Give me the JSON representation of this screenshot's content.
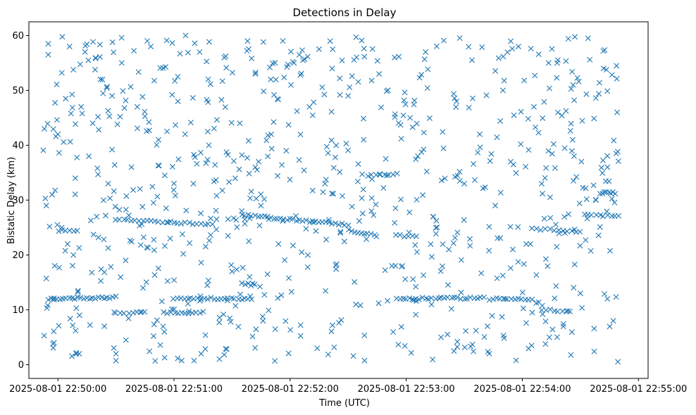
{
  "chart_data": {
    "type": "scatter",
    "title": "Detections in Delay",
    "xlabel": "Time (UTC)",
    "ylabel": "Bistatic Delay (km)",
    "x_type": "datetime",
    "xlim": [
      "2025-08-01 22:49:45",
      "2025-08-01 22:55:05"
    ],
    "ylim": [
      -2.5,
      62.5
    ],
    "xticks": [
      "2025-08-01 22:50:00",
      "2025-08-01 22:51:00",
      "2025-08-01 22:52:00",
      "2025-08-01 22:53:00",
      "2025-08-01 22:54:00",
      "2025-08-01 22:55:00"
    ],
    "yticks": [
      0,
      10,
      20,
      30,
      40,
      50,
      60
    ],
    "marker": "x",
    "color": "#1f77b4",
    "grid": false,
    "series": [
      {
        "points": [
          [
            "2025-08-01 22:49:53",
            43
          ],
          [
            "2025-08-01 22:49:54",
            29
          ],
          [
            "2025-08-01 22:49:55",
            58.5
          ],
          [
            "2025-08-01 22:49:55",
            56.5
          ],
          [
            "2025-08-01 22:49:57",
            31
          ],
          [
            "2025-08-01 22:49:58",
            4
          ],
          [
            "2025-08-01 22:50:00",
            42
          ],
          [
            "2025-08-01 22:50:02",
            25
          ],
          [
            "2025-08-01 22:50:04",
            48.5
          ],
          [
            "2025-08-01 22:50:05",
            22
          ],
          [
            "2025-08-01 22:50:06",
            58
          ],
          [
            "2025-08-01 22:50:08",
            20
          ],
          [
            "2025-08-01 22:50:09",
            34
          ],
          [
            "2025-08-01 22:50:11",
            2
          ],
          [
            "2025-08-01 22:50:12",
            47
          ],
          [
            "2025-08-01 22:50:14",
            57
          ],
          [
            "2025-08-01 22:50:16",
            38
          ],
          [
            "2025-08-01 22:50:18",
            44
          ],
          [
            "2025-08-01 22:50:20",
            27
          ],
          [
            "2025-08-01 22:50:22",
            52
          ],
          [
            "2025-08-01 22:50:24",
            7
          ],
          [
            "2025-08-01 22:50:26",
            33
          ],
          [
            "2025-08-01 22:50:28",
            49
          ],
          [
            "2025-08-01 22:50:30",
            2
          ],
          [
            "2025-08-01 22:50:33",
            55
          ],
          [
            "2025-08-01 22:50:35",
            19
          ],
          [
            "2025-08-01 22:50:38",
            36
          ],
          [
            "2025-08-01 22:50:41",
            47
          ],
          [
            "2025-08-01 22:50:44",
            14
          ],
          [
            "2025-08-01 22:50:48",
            58
          ],
          [
            "2025-08-01 22:50:52",
            41
          ],
          [
            "2025-08-01 22:50:55",
            6
          ],
          [
            "2025-08-01 22:50:58",
            23
          ],
          [
            "2025-08-01 22:51:02",
            48
          ],
          [
            "2025-08-01 22:51:06",
            60
          ],
          [
            "2025-08-01 22:51:10",
            33
          ],
          [
            "2025-08-01 22:51:14",
            2
          ],
          [
            "2025-08-01 22:51:18",
            40
          ],
          [
            "2025-08-01 22:51:22",
            26.5
          ],
          [
            "2025-08-01 22:51:26",
            56
          ],
          [
            "2025-08-01 22:51:30",
            17
          ],
          [
            "2025-08-01 22:51:34",
            44
          ],
          [
            "2025-08-01 22:51:38",
            59
          ],
          [
            "2025-08-01 22:51:42",
            36
          ],
          [
            "2025-08-01 22:51:46",
            8
          ],
          [
            "2025-08-01 22:51:50",
            52
          ],
          [
            "2025-08-01 22:51:54",
            22
          ],
          [
            "2025-08-01 22:51:58",
            39
          ],
          [
            "2025-08-01 22:52:02",
            55
          ],
          [
            "2025-08-01 22:52:06",
            20.5
          ],
          [
            "2025-08-01 22:52:10",
            47
          ],
          [
            "2025-08-01 22:52:14",
            3
          ],
          [
            "2025-08-01 22:52:18",
            33
          ],
          [
            "2025-08-01 22:52:22",
            57.5
          ],
          [
            "2025-08-01 22:52:26",
            24
          ],
          [
            "2025-08-01 22:52:30",
            49
          ],
          [
            "2025-08-01 22:52:34",
            11
          ],
          [
            "2025-08-01 22:52:38",
            41
          ],
          [
            "2025-08-01 22:52:42",
            28
          ],
          [
            "2025-08-01 22:52:46",
            53
          ],
          [
            "2025-08-01 22:52:50",
            34.5
          ],
          [
            "2025-08-01 22:52:54",
            56
          ],
          [
            "2025-08-01 22:52:58",
            18
          ],
          [
            "2025-08-01 22:53:02",
            45
          ],
          [
            "2025-08-01 22:53:06",
            38
          ],
          [
            "2025-08-01 22:53:10",
            57
          ],
          [
            "2025-08-01 22:53:14",
            27
          ],
          [
            "2025-08-01 22:53:18",
            5
          ],
          [
            "2025-08-01 22:53:22",
            21
          ],
          [
            "2025-08-01 22:53:26",
            48
          ],
          [
            "2025-08-01 22:53:30",
            33
          ],
          [
            "2025-08-01 22:53:34",
            55.5
          ],
          [
            "2025-08-01 22:53:38",
            42
          ],
          [
            "2025-08-01 22:53:42",
            7
          ],
          [
            "2025-08-01 22:53:46",
            29
          ],
          [
            "2025-08-01 22:53:50",
            50
          ],
          [
            "2025-08-01 22:53:54",
            37
          ],
          [
            "2025-08-01 22:53:58",
            58
          ],
          [
            "2025-08-01 22:54:02",
            22
          ],
          [
            "2025-08-01 22:54:06",
            47
          ],
          [
            "2025-08-01 22:54:10",
            33
          ],
          [
            "2025-08-01 22:54:14",
            5
          ],
          [
            "2025-08-01 22:54:18",
            55
          ],
          [
            "2025-08-01 22:54:22",
            24
          ],
          [
            "2025-08-01 22:54:26",
            41
          ],
          [
            "2025-08-01 22:54:30",
            13
          ],
          [
            "2025-08-01 22:54:34",
            59.5
          ],
          [
            "2025-08-01 22:54:38",
            30
          ],
          [
            "2025-08-01 22:54:42",
            54
          ],
          [
            "2025-08-01 22:54:44",
            36
          ],
          [
            "2025-08-01 22:54:47",
            8
          ],
          [
            "2025-08-01 22:54:49",
            46
          ]
        ]
      }
    ],
    "bands": [
      {
        "start": "2025-08-01 22:49:55",
        "end": "2025-08-01 22:50:30",
        "y0": 12,
        "y1": 12.3,
        "count": 24
      },
      {
        "start": "2025-08-01 22:51:00",
        "end": "2025-08-01 22:51:40",
        "y0": 12.1,
        "y1": 12,
        "count": 24
      },
      {
        "start": "2025-08-01 22:52:55",
        "end": "2025-08-01 22:53:40",
        "y0": 12,
        "y1": 12.2,
        "count": 28
      },
      {
        "start": "2025-08-01 22:53:45",
        "end": "2025-08-01 22:54:05",
        "y0": 12,
        "y1": 12,
        "count": 12
      },
      {
        "start": "2025-08-01 22:50:30",
        "end": "2025-08-01 22:51:20",
        "y0": 26.5,
        "y1": 25.5,
        "count": 26
      },
      {
        "start": "2025-08-01 22:51:35",
        "end": "2025-08-01 22:52:30",
        "y0": 27.3,
        "y1": 25.5,
        "count": 34
      },
      {
        "start": "2025-08-01 22:52:30",
        "end": "2025-08-01 22:52:45",
        "y0": 24.5,
        "y1": 23.5,
        "count": 10
      },
      {
        "start": "2025-08-01 22:52:55",
        "end": "2025-08-01 22:53:05",
        "y0": 23.5,
        "y1": 23.5,
        "count": 6
      },
      {
        "start": "2025-08-01 22:54:05",
        "end": "2025-08-01 22:54:30",
        "y0": 24.8,
        "y1": 24.2,
        "count": 12
      },
      {
        "start": "2025-08-01 22:54:32",
        "end": "2025-08-01 22:54:50",
        "y0": 27.3,
        "y1": 27,
        "count": 10
      },
      {
        "start": "2025-08-01 22:50:55",
        "end": "2025-08-01 22:51:15",
        "y0": 9.5,
        "y1": 9.5,
        "count": 12
      },
      {
        "start": "2025-08-01 22:50:30",
        "end": "2025-08-01 22:50:45",
        "y0": 9.5,
        "y1": 9.5,
        "count": 8
      },
      {
        "start": "2025-08-01 22:54:10",
        "end": "2025-08-01 22:54:25",
        "y0": 10,
        "y1": 9.8,
        "count": 8
      },
      {
        "start": "2025-08-01 22:54:40",
        "end": "2025-08-01 22:54:48",
        "y0": 31.3,
        "y1": 31.3,
        "count": 8
      },
      {
        "start": "2025-08-01 22:52:40",
        "end": "2025-08-01 22:52:55",
        "y0": 34.5,
        "y1": 34.8,
        "count": 8
      },
      {
        "start": "2025-08-01 22:50:00",
        "end": "2025-08-01 22:50:10",
        "y0": 24.5,
        "y1": 24.5,
        "count": 6
      },
      {
        "start": "2025-08-01 22:51:35",
        "end": "2025-08-01 22:51:42",
        "y0": 14.7,
        "y1": 14.7,
        "count": 5
      }
    ],
    "noise": {
      "start": "2025-08-01 22:49:52",
      "end": "2025-08-01 22:54:50",
      "y_min": 0.5,
      "y_max": 59.8,
      "count": 700
    }
  }
}
